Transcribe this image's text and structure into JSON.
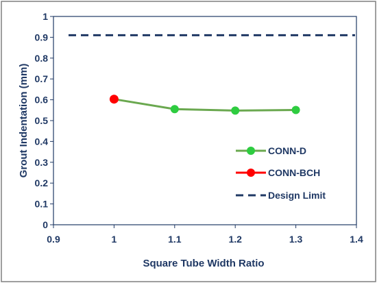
{
  "chart_data": {
    "type": "line",
    "title": "",
    "xlabel": "Square Tube Width Ratio",
    "ylabel": "Grout Indentation (mm)",
    "xlim": [
      0.9,
      1.4
    ],
    "ylim": [
      0,
      1
    ],
    "x_ticks": [
      "0.9",
      "1",
      "1.1",
      "1.2",
      "1.3",
      "1.4"
    ],
    "y_ticks": [
      "0",
      "0.1",
      "0.2",
      "0.3",
      "0.4",
      "0.5",
      "0.6",
      "0.7",
      "0.8",
      "0.9",
      "1"
    ],
    "grid": false,
    "legend_position": "right",
    "series": [
      {
        "name": "CONN-D",
        "x": [
          1.0,
          1.1,
          1.2,
          1.3
        ],
        "y": [
          0.603,
          0.555,
          0.548,
          0.551
        ],
        "line_color": "#6AA84F",
        "marker_color": "#2ECC40"
      },
      {
        "name": "CONN-BCH",
        "x": [
          1.0
        ],
        "y": [
          0.603
        ],
        "line_color": "#FF0000",
        "marker_color": "#FF0000"
      },
      {
        "name": "Design Limit",
        "x": [
          0.9,
          1.4
        ],
        "y": [
          0.91,
          0.91
        ],
        "line_color": "#1F3864",
        "dashed": true
      }
    ]
  }
}
